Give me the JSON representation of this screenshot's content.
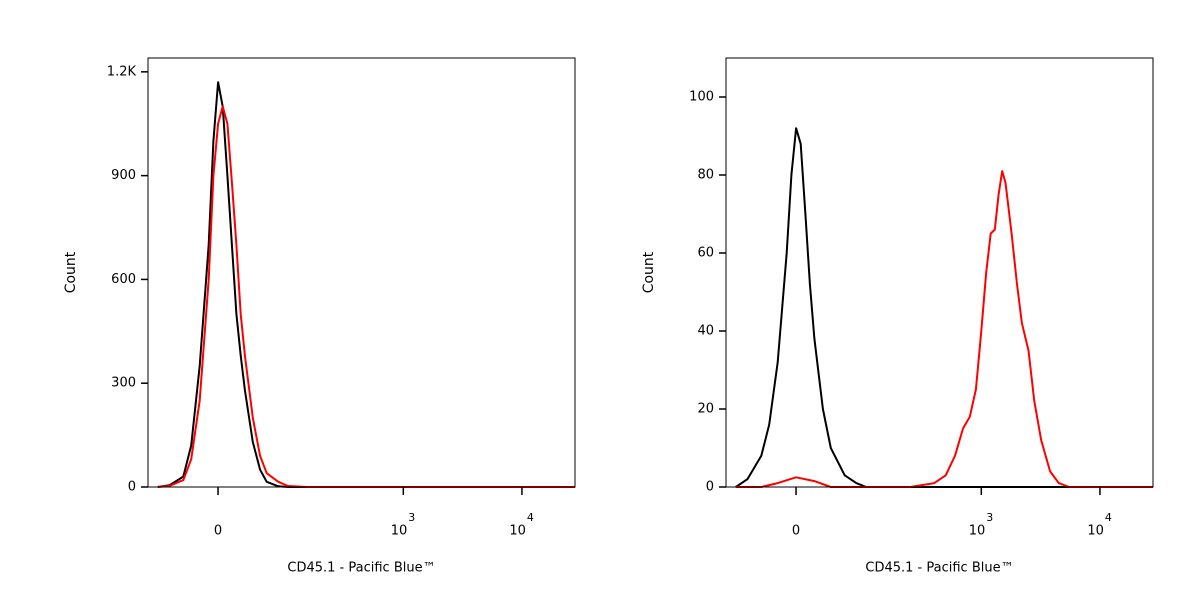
{
  "chart_data": [
    {
      "type": "line",
      "xlabel": "CD45.1 - Pacific Blue™",
      "ylabel": "Count",
      "xscale": "biexponential",
      "xlim": [
        -100,
        28000
      ],
      "xticks": [
        0,
        {
          "value": 1000,
          "label": "10",
          "exponent": "3"
        },
        {
          "value": 10000,
          "label": "10",
          "exponent": "4"
        }
      ],
      "ylim": [
        0,
        1240
      ],
      "yticks": [
        0,
        300,
        600,
        900,
        {
          "value": 1200,
          "label": "1.2K"
        }
      ],
      "series": [
        {
          "color": "#000000",
          "x": [
            -80,
            -60,
            -40,
            -30,
            -20,
            -10,
            -5,
            0,
            5,
            10,
            15,
            20,
            25,
            30,
            40,
            50,
            60,
            80,
            100,
            1000,
            28000
          ],
          "values": [
            0,
            5,
            30,
            120,
            350,
            700,
            1000,
            1170,
            1100,
            900,
            700,
            500,
            380,
            280,
            130,
            50,
            15,
            2,
            0,
            0,
            0
          ]
        },
        {
          "color": "#ff0000",
          "x": [
            -80,
            -60,
            -40,
            -30,
            -20,
            -10,
            -5,
            0,
            5,
            10,
            15,
            20,
            25,
            30,
            40,
            50,
            60,
            80,
            100,
            150,
            28000
          ],
          "values": [
            0,
            3,
            20,
            80,
            250,
            600,
            900,
            1050,
            1100,
            1050,
            880,
            700,
            500,
            380,
            200,
            90,
            40,
            15,
            3,
            0,
            0
          ]
        }
      ]
    },
    {
      "type": "line",
      "xlabel": "CD45.1 - Pacific Blue™",
      "ylabel": "Count",
      "xscale": "biexponential",
      "xlim": [
        -100,
        28000
      ],
      "xticks": [
        0,
        {
          "value": 1000,
          "label": "10",
          "exponent": "3"
        },
        {
          "value": 10000,
          "label": "10",
          "exponent": "4"
        }
      ],
      "ylim": [
        0,
        110
      ],
      "yticks": [
        0,
        20,
        40,
        60,
        80,
        100
      ],
      "series": [
        {
          "color": "#000000",
          "x": [
            -80,
            -60,
            -40,
            -30,
            -20,
            -10,
            -5,
            0,
            5,
            10,
            15,
            20,
            30,
            40,
            60,
            80,
            100,
            28000
          ],
          "values": [
            0,
            2,
            8,
            16,
            32,
            60,
            80,
            92,
            88,
            70,
            52,
            38,
            20,
            10,
            3,
            1,
            0,
            0
          ]
        },
        {
          "color": "#ff0000",
          "x": [
            -80,
            -40,
            -20,
            0,
            20,
            40,
            250,
            400,
            500,
            600,
            700,
            800,
            900,
            1000,
            1100,
            1200,
            1300,
            1400,
            1500,
            1600,
            1800,
            2000,
            2200,
            2500,
            2800,
            3200,
            3800,
            4500,
            5500,
            28000
          ],
          "values": [
            0,
            0,
            1,
            2.5,
            1.5,
            0,
            0,
            1,
            3,
            8,
            15,
            18,
            25,
            40,
            55,
            65,
            66,
            75,
            81,
            78,
            65,
            52,
            42,
            35,
            22,
            12,
            4,
            1,
            0,
            0
          ]
        }
      ]
    }
  ]
}
